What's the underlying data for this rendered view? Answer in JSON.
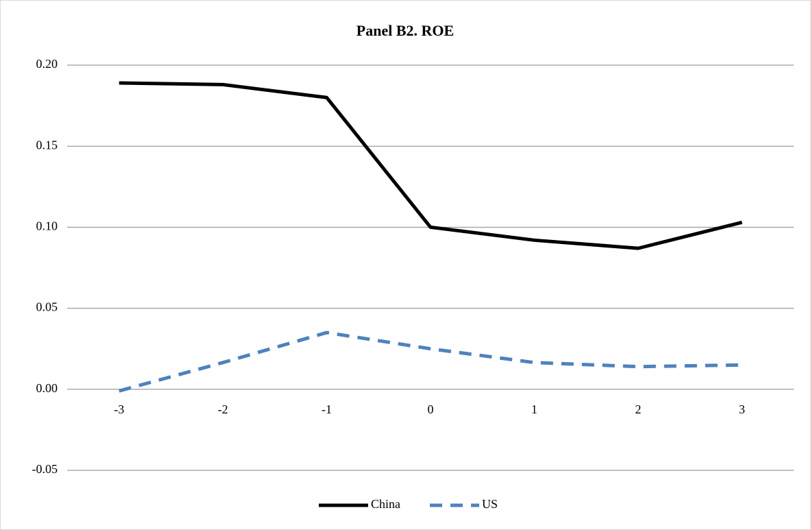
{
  "chart_data": {
    "type": "line",
    "title": "Panel B2. ROE",
    "categories": [
      "-3",
      "-2",
      "-1",
      "0",
      "1",
      "2",
      "3"
    ],
    "series": [
      {
        "name": "China",
        "color": "#000000",
        "dash": false,
        "values": [
          0.189,
          0.188,
          0.18,
          0.1,
          0.092,
          0.087,
          0.103
        ]
      },
      {
        "name": "US",
        "color": "#4f81bd",
        "dash": true,
        "values": [
          -0.001,
          0.0165,
          0.035,
          0.025,
          0.0165,
          0.014,
          0.015
        ]
      }
    ],
    "ylim": [
      -0.05,
      0.2
    ],
    "yticks": [
      {
        "value": 0.2,
        "label": "0.20"
      },
      0.15,
      {
        "value": 0.1,
        "label": "0.10"
      },
      0.05,
      {
        "value": 0,
        "label": "0.00"
      },
      -0.05
    ],
    "grid": true,
    "legend": "bottom"
  }
}
